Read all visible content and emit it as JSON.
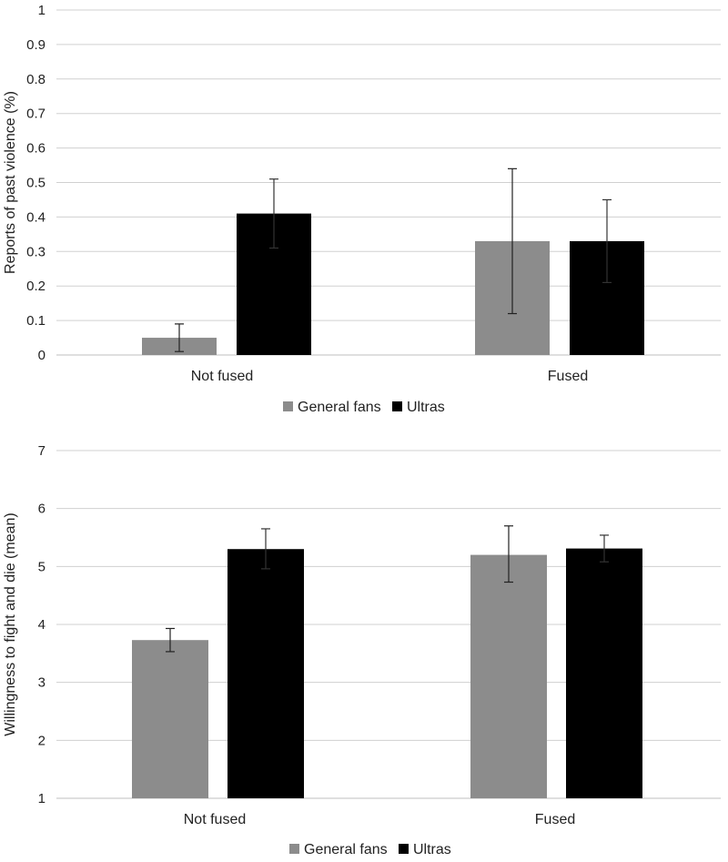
{
  "colors": {
    "general_fans": "#8c8c8c",
    "ultras": "#000000",
    "grid": "#d0d0d0",
    "axis": "#bfbfbf",
    "error": "#222222"
  },
  "chart_data": [
    {
      "type": "bar",
      "title": "",
      "xlabel": "",
      "ylabel": "Reports of past violence (%)",
      "categories": [
        "Not fused",
        "Fused"
      ],
      "ylim": [
        0,
        1
      ],
      "yticks": [
        0,
        0.1,
        0.2,
        0.3,
        0.4,
        0.5,
        0.6,
        0.7,
        0.8,
        0.9,
        1
      ],
      "ytick_labels": [
        "0",
        "0.1",
        "0.2",
        "0.3",
        "0.4",
        "0.5",
        "0.6",
        "0.7",
        "0.8",
        "0.9",
        "1"
      ],
      "series": [
        {
          "name": "General fans",
          "values": [
            0.05,
            0.33
          ],
          "err_low": [
            0.01,
            0.12
          ],
          "err_high": [
            0.09,
            0.54
          ]
        },
        {
          "name": "Ultras",
          "values": [
            0.41,
            0.33
          ],
          "err_low": [
            0.31,
            0.21
          ],
          "err_high": [
            0.51,
            0.45
          ]
        }
      ],
      "legend": "bottom-center"
    },
    {
      "type": "bar",
      "title": "",
      "xlabel": "",
      "ylabel": "Willingness to fight and die (mean)",
      "categories": [
        "Not fused",
        "Fused"
      ],
      "ylim": [
        1,
        7
      ],
      "yticks": [
        1,
        2,
        3,
        4,
        5,
        6,
        7
      ],
      "ytick_labels": [
        "1",
        "2",
        "3",
        "4",
        "5",
        "6",
        "7"
      ],
      "series": [
        {
          "name": "General fans",
          "values": [
            3.73,
            5.2
          ],
          "err_low": [
            3.53,
            4.73
          ],
          "err_high": [
            3.93,
            5.7
          ]
        },
        {
          "name": "Ultras",
          "values": [
            5.3,
            5.31
          ],
          "err_low": [
            4.96,
            5.08
          ],
          "err_high": [
            5.65,
            5.54
          ]
        }
      ],
      "legend": "bottom-center"
    }
  ]
}
